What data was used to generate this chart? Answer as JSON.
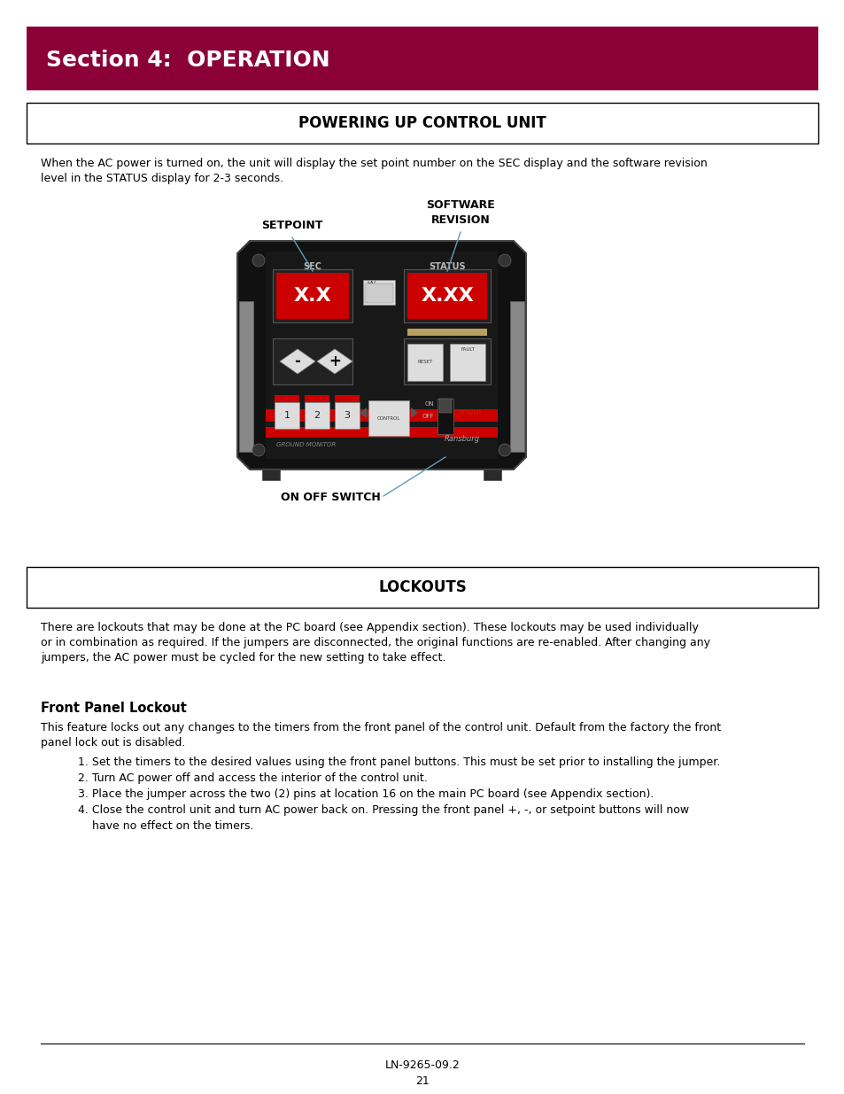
{
  "page_bg": "#ffffff",
  "header_bg": "#8c0038",
  "header_text": "Section 4:  OPERATION",
  "header_text_color": "#ffffff",
  "header_fontsize": 18,
  "section1_title": "POWERING UP CONTROL UNIT",
  "section1_title_fontsize": 12,
  "section1_body": "When the AC power is turned on, the unit will display the set point number on the SEC display and the software revision\nlevel in the STATUS display for 2-3 seconds.",
  "section1_body_fontsize": 9,
  "label_setpoint": "SETPOINT",
  "label_software_line1": "SOFTWARE",
  "label_software_line2": "REVISION",
  "label_onoff": "ON OFF SWITCH",
  "section2_title": "LOCKOUTS",
  "section2_title_fontsize": 12,
  "section2_body": "There are lockouts that may be done at the PC board (see Appendix section). These lockouts may be used individually\nor in combination as required. If the jumpers are disconnected, the original functions are re-enabled. After changing any\njumpers, the AC power must be cycled for the new setting to take effect.",
  "section2_body_fontsize": 9,
  "subsection_title": "Front Panel Lockout",
  "subsection_title_fontsize": 10.5,
  "subsection_body": "This feature locks out any changes to the timers from the front panel of the control unit. Default from the factory the front\npanel lock out is disabled.",
  "subsection_body_fontsize": 9,
  "numbered_item1": "1. Set the timers to the desired values using the front panel buttons. This must be set prior to installing the jumper.",
  "numbered_item2": "2. Turn AC power off and access the interior of the control unit.",
  "numbered_item3": "3. Place the jumper across the two (2) pins at location 16 on the main PC board (see Appendix section).",
  "numbered_item4a": "4. Close the control unit and turn AC power back on. Pressing the front panel +, -, or setpoint buttons will now",
  "numbered_item4b": "    have no effect on the timers.",
  "numbered_items_fontsize": 9,
  "footer_text1": "LN-9265-09.2",
  "footer_text2": "21",
  "footer_fontsize": 9,
  "device_panel_color": "#111111",
  "device_dark_color": "#1c1c1c",
  "device_red_color": "#cc0000",
  "device_edge_color": "#444444",
  "line_color": "#6699bb"
}
